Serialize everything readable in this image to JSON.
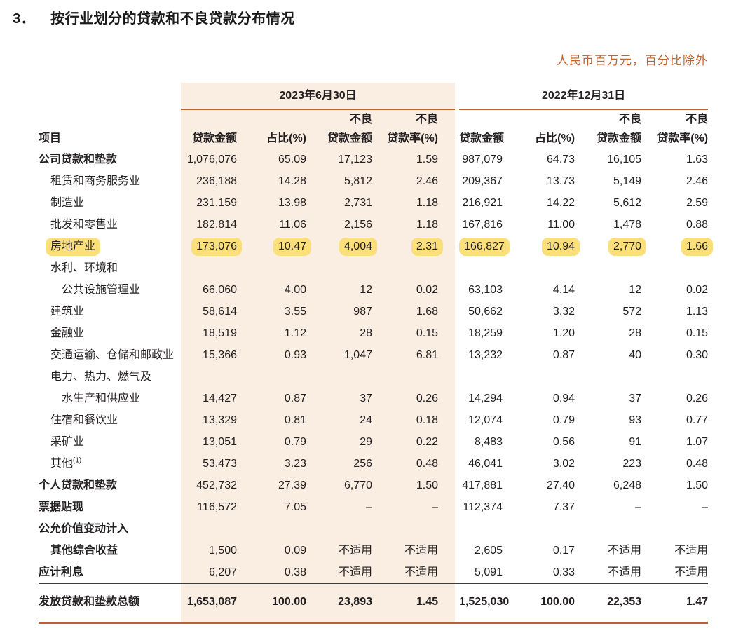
{
  "page": {
    "section_no": "3．",
    "title": "按行业划分的贷款和不良贷款分布情况",
    "unit_note": "人民币百万元，百分比除外"
  },
  "colors": {
    "accent_line": "#c0632f",
    "group_background": "#faeee3",
    "highlight_yellow": "#fbdf7b"
  },
  "table": {
    "periods": [
      "2023年6月30日",
      "2022年12月31日"
    ],
    "header": {
      "item_label": "项目",
      "npl_prefix": "不良",
      "cols": [
        "贷款金额",
        "占比(%)",
        "贷款金额",
        "贷款率(%)"
      ]
    },
    "rows": [
      {
        "label": [
          "公司贷款和垫款"
        ],
        "bold": true,
        "indent": 0,
        "values": [
          "1,076,076",
          "65.09",
          "17,123",
          "1.59",
          "987,079",
          "64.73",
          "16,105",
          "1.63"
        ]
      },
      {
        "label": [
          "租赁和商务服务业"
        ],
        "indent": 1,
        "values": [
          "236,188",
          "14.28",
          "5,812",
          "2.46",
          "209,367",
          "13.73",
          "5,149",
          "2.46"
        ]
      },
      {
        "label": [
          "制造业"
        ],
        "indent": 1,
        "values": [
          "231,159",
          "13.98",
          "2,731",
          "1.18",
          "216,921",
          "14.22",
          "5,612",
          "2.59"
        ]
      },
      {
        "label": [
          "批发和零售业"
        ],
        "indent": 1,
        "values": [
          "182,814",
          "11.06",
          "2,156",
          "1.18",
          "167,816",
          "11.00",
          "1,478",
          "0.88"
        ]
      },
      {
        "label": [
          "房地产业"
        ],
        "indent": 1,
        "highlight": true,
        "values": [
          "173,076",
          "10.47",
          "4,004",
          "2.31",
          "166,827",
          "10.94",
          "2,770",
          "1.66"
        ]
      },
      {
        "label": [
          "水利、环境和",
          "公共设施管理业"
        ],
        "indent": 1,
        "values": [
          "66,060",
          "4.00",
          "12",
          "0.02",
          "63,103",
          "4.14",
          "12",
          "0.02"
        ]
      },
      {
        "label": [
          "建筑业"
        ],
        "indent": 1,
        "values": [
          "58,614",
          "3.55",
          "987",
          "1.68",
          "50,662",
          "3.32",
          "572",
          "1.13"
        ]
      },
      {
        "label": [
          "金融业"
        ],
        "indent": 1,
        "values": [
          "18,519",
          "1.12",
          "28",
          "0.15",
          "18,259",
          "1.20",
          "28",
          "0.15"
        ]
      },
      {
        "label": [
          "交通运输、仓储和邮政业"
        ],
        "indent": 1,
        "values": [
          "15,366",
          "0.93",
          "1,047",
          "6.81",
          "13,232",
          "0.87",
          "40",
          "0.30"
        ]
      },
      {
        "label": [
          "电力、热力、燃气及",
          "水生产和供应业"
        ],
        "indent": 1,
        "values": [
          "14,427",
          "0.87",
          "37",
          "0.26",
          "14,294",
          "0.94",
          "37",
          "0.26"
        ]
      },
      {
        "label": [
          "住宿和餐饮业"
        ],
        "indent": 1,
        "values": [
          "13,329",
          "0.81",
          "24",
          "0.18",
          "12,074",
          "0.79",
          "93",
          "0.77"
        ]
      },
      {
        "label": [
          "采矿业"
        ],
        "indent": 1,
        "values": [
          "13,051",
          "0.79",
          "29",
          "0.22",
          "8,483",
          "0.56",
          "91",
          "1.07"
        ]
      },
      {
        "label": [
          "其他"
        ],
        "sup": "(1)",
        "indent": 1,
        "values": [
          "53,473",
          "3.23",
          "256",
          "0.48",
          "46,041",
          "3.02",
          "223",
          "0.48"
        ]
      },
      {
        "label": [
          "个人贷款和垫款"
        ],
        "bold": true,
        "indent": 0,
        "values": [
          "452,732",
          "27.39",
          "6,770",
          "1.50",
          "417,881",
          "27.40",
          "6,248",
          "1.50"
        ]
      },
      {
        "label": [
          "票据贴现"
        ],
        "bold": true,
        "indent": 0,
        "values": [
          "116,572",
          "7.05",
          "–",
          "–",
          "112,374",
          "7.37",
          "–",
          "–"
        ]
      },
      {
        "label": [
          "公允价值变动计入",
          "其他综合收益"
        ],
        "bold": true,
        "indent": 0,
        "values": [
          "1,500",
          "0.09",
          "不适用",
          "不适用",
          "2,605",
          "0.17",
          "不适用",
          "不适用"
        ]
      },
      {
        "label": [
          "应计利息"
        ],
        "bold": true,
        "indent": 0,
        "values": [
          "6,207",
          "0.38",
          "不适用",
          "不适用",
          "5,091",
          "0.33",
          "不适用",
          "不适用"
        ]
      },
      {
        "label": [
          "发放贷款和垫款总额"
        ],
        "bold": true,
        "indent": 0,
        "total": true,
        "values": [
          "1,653,087",
          "100.00",
          "23,893",
          "1.45",
          "1,525,030",
          "100.00",
          "22,353",
          "1.47"
        ]
      }
    ]
  }
}
